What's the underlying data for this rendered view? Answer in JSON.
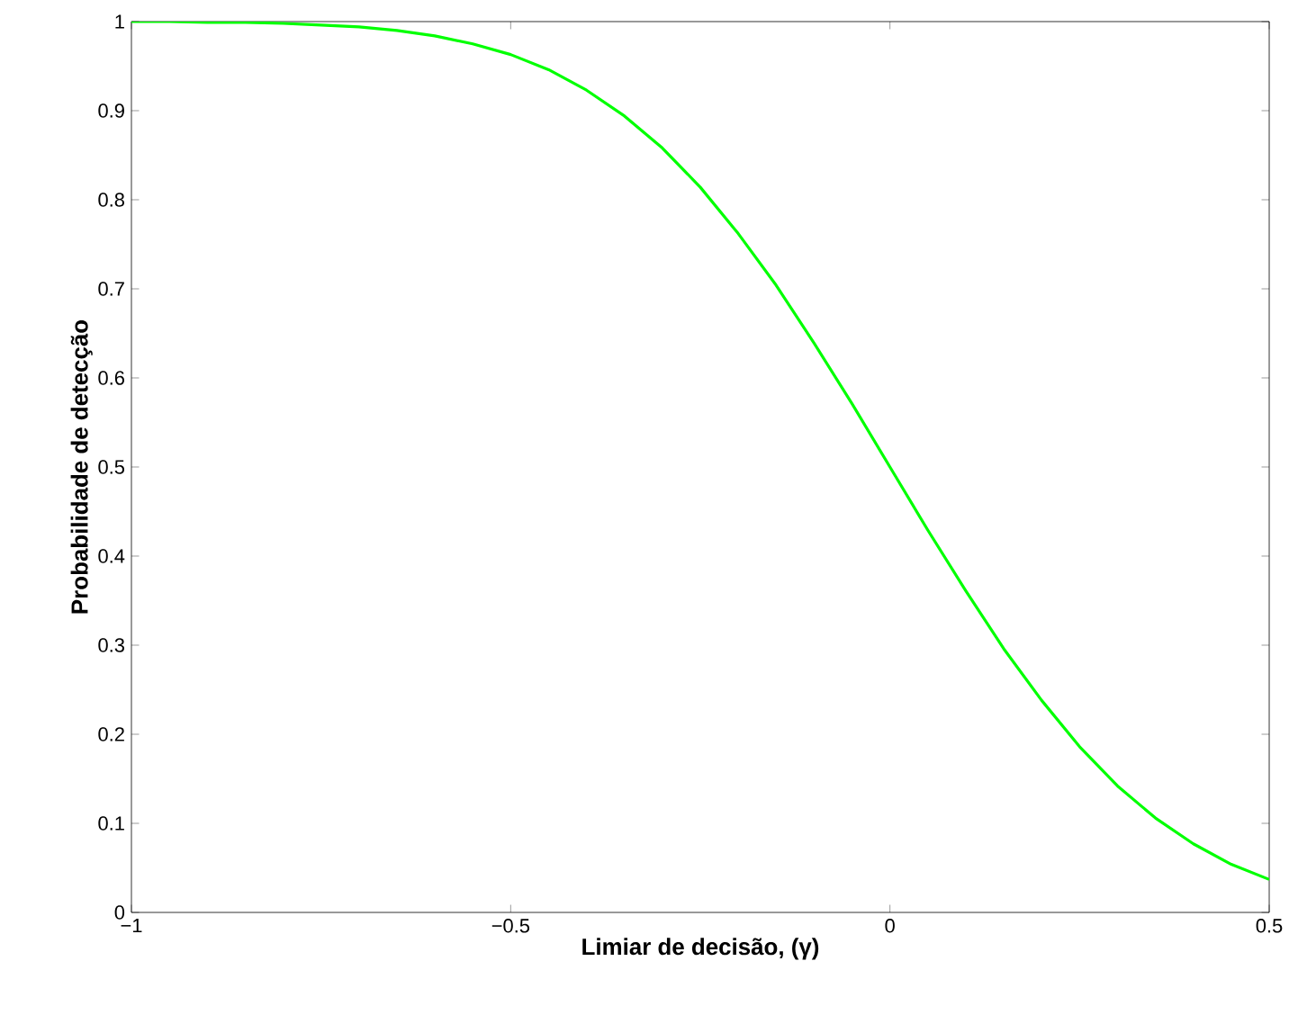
{
  "chart_data": {
    "type": "line",
    "xlabel": "Limiar de decisão, (γ)",
    "ylabel": "Probabilidade de detecção",
    "x": [
      -1,
      -0.95,
      -0.9,
      -0.85,
      -0.8,
      -0.75,
      -0.7,
      -0.65,
      -0.6,
      -0.55,
      -0.5,
      -0.45,
      -0.4,
      -0.35,
      -0.3,
      -0.25,
      -0.2,
      -0.15,
      -0.1,
      -0.05,
      0,
      0.05,
      0.1,
      0.15,
      0.2,
      0.25,
      0.3,
      0.35,
      0.4,
      0.45,
      0.5
    ],
    "series": [
      {
        "color": "#00ff00",
        "values": [
          1.0,
          1.0,
          0.999,
          0.999,
          0.998,
          0.996,
          0.994,
          0.99,
          0.984,
          0.975,
          0.963,
          0.946,
          0.923,
          0.894,
          0.858,
          0.814,
          0.762,
          0.704,
          0.639,
          0.571,
          0.5,
          0.429,
          0.361,
          0.296,
          0.238,
          0.186,
          0.142,
          0.106,
          0.077,
          0.054,
          0.037
        ]
      }
    ],
    "xlim": [
      -1,
      0.5
    ],
    "ylim": [
      0,
      1
    ],
    "xticks": [
      {
        "value": -1,
        "label": "−1"
      },
      {
        "value": -0.5,
        "label": "−0.5"
      },
      0,
      0.5
    ],
    "yticks": [
      0,
      0.1,
      0.2,
      0.3,
      0.4,
      0.5,
      0.6,
      0.7,
      0.8,
      0.9,
      1
    ],
    "grid": false,
    "marker": "none",
    "line_style": "solid"
  }
}
